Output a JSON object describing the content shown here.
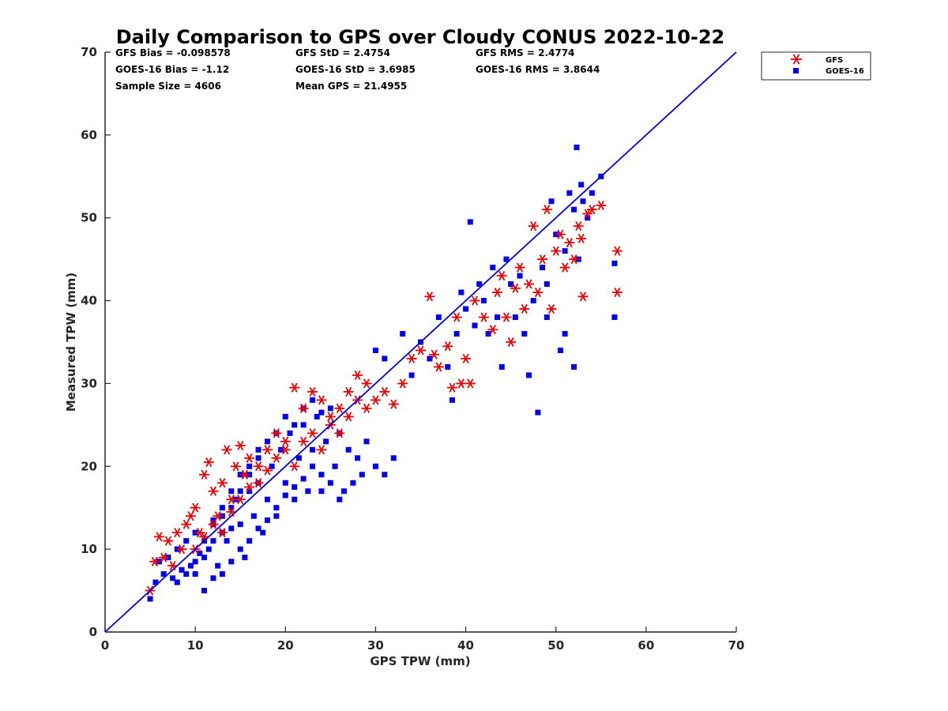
{
  "chart_data": {
    "type": "scatter",
    "title": "Daily Comparison to GPS over Cloudy CONUS 2022-10-22",
    "xlabel": "GPS TPW (mm)",
    "ylabel": "Measured TPW (mm)",
    "xlim": [
      0,
      70
    ],
    "ylim": [
      0,
      70
    ],
    "xticks": [
      "0",
      "10",
      "20",
      "30",
      "40",
      "50",
      "60",
      "70"
    ],
    "yticks": [
      "0",
      "10",
      "20",
      "30",
      "40",
      "50",
      "60",
      "70"
    ],
    "grid": false,
    "legend_position": "outside top-right",
    "stats": {
      "row1": [
        "GFS Bias = -0.098578",
        "GFS StD = 2.4754",
        "GFS RMS = 2.4774"
      ],
      "row2": [
        "GOES-16 Bias = -1.12",
        "GOES-16 StD = 3.6985",
        "GOES-16 RMS = 3.8644"
      ],
      "row3": [
        "Sample Size = 4606",
        "Mean GPS = 21.4955"
      ]
    },
    "reference_line": {
      "x": [
        0,
        70
      ],
      "y": [
        0,
        70
      ],
      "color": "#0000ee"
    },
    "series": [
      {
        "name": "GOES-16",
        "marker": "square",
        "color": "#0000ee",
        "points": [
          [
            5,
            4
          ],
          [
            5.6,
            6
          ],
          [
            6,
            8.5
          ],
          [
            6.5,
            7
          ],
          [
            7,
            9
          ],
          [
            7.5,
            6.5
          ],
          [
            8,
            10
          ],
          [
            8.5,
            7.5
          ],
          [
            9,
            11
          ],
          [
            9.5,
            8
          ],
          [
            10,
            12
          ],
          [
            10.5,
            9.5
          ],
          [
            11,
            5
          ],
          [
            11.5,
            10
          ],
          [
            12,
            13
          ],
          [
            12.5,
            8
          ],
          [
            13,
            14
          ],
          [
            13.5,
            11
          ],
          [
            14,
            12.5
          ],
          [
            14.5,
            16
          ],
          [
            15,
            13
          ],
          [
            15.5,
            9
          ],
          [
            16,
            17
          ],
          [
            16.5,
            14
          ],
          [
            17,
            18
          ],
          [
            17.5,
            12
          ],
          [
            18,
            16
          ],
          [
            18.5,
            20
          ],
          [
            19,
            15
          ],
          [
            19.5,
            22
          ],
          [
            20,
            18
          ],
          [
            20.5,
            24
          ],
          [
            21,
            16
          ],
          [
            21.5,
            21
          ],
          [
            22,
            25
          ],
          [
            22.5,
            17
          ],
          [
            23,
            22
          ],
          [
            23.5,
            26
          ],
          [
            24,
            19
          ],
          [
            24.5,
            23
          ],
          [
            25,
            27
          ],
          [
            25.5,
            20
          ],
          [
            26,
            24
          ],
          [
            26.5,
            17
          ],
          [
            27,
            22
          ],
          [
            27.5,
            18
          ],
          [
            28,
            21
          ],
          [
            28.5,
            19
          ],
          [
            29,
            23
          ],
          [
            30,
            20
          ],
          [
            31,
            19
          ],
          [
            32,
            21
          ],
          [
            30,
            34
          ],
          [
            31,
            33
          ],
          [
            33,
            36
          ],
          [
            34,
            31
          ],
          [
            35,
            35
          ],
          [
            36,
            33
          ],
          [
            37,
            38
          ],
          [
            38,
            32
          ],
          [
            38.5,
            28
          ],
          [
            39,
            36
          ],
          [
            39.5,
            41
          ],
          [
            40,
            39
          ],
          [
            40.5,
            49.5
          ],
          [
            41,
            37
          ],
          [
            41.5,
            42
          ],
          [
            42,
            40
          ],
          [
            42.5,
            36
          ],
          [
            43,
            44
          ],
          [
            43.5,
            38
          ],
          [
            44,
            32
          ],
          [
            44.5,
            45
          ],
          [
            45,
            42
          ],
          [
            45.5,
            38
          ],
          [
            46,
            43
          ],
          [
            46.5,
            36
          ],
          [
            47,
            31
          ],
          [
            47.5,
            40
          ],
          [
            48,
            26.5
          ],
          [
            48.5,
            44
          ],
          [
            49,
            38
          ],
          [
            49.5,
            52
          ],
          [
            50,
            48
          ],
          [
            50.5,
            34
          ],
          [
            51,
            46
          ],
          [
            51.5,
            53
          ],
          [
            52,
            51
          ],
          [
            52.3,
            58.5
          ],
          [
            52.5,
            45
          ],
          [
            52.8,
            54
          ],
          [
            53,
            52
          ],
          [
            53.5,
            50
          ],
          [
            54,
            53
          ],
          [
            55,
            55
          ],
          [
            56.5,
            44.5
          ],
          [
            56.5,
            38
          ],
          [
            52,
            32
          ],
          [
            51,
            36
          ],
          [
            49,
            42
          ],
          [
            12,
            6.5
          ],
          [
            13,
            7
          ],
          [
            14,
            8.5
          ],
          [
            15,
            10
          ],
          [
            16,
            11
          ],
          [
            17,
            12.5
          ],
          [
            18,
            13.5
          ],
          [
            19,
            14
          ],
          [
            20,
            16.5
          ],
          [
            21,
            17.5
          ],
          [
            22,
            18.5
          ],
          [
            23,
            20
          ],
          [
            24,
            17
          ],
          [
            25,
            18
          ],
          [
            26,
            16
          ],
          [
            10,
            7
          ],
          [
            11,
            9
          ],
          [
            12,
            11
          ],
          [
            13,
            12
          ],
          [
            14,
            15
          ],
          [
            15,
            17
          ],
          [
            16,
            19
          ],
          [
            17,
            21
          ],
          [
            18,
            23
          ],
          [
            19,
            24
          ],
          [
            20,
            26
          ],
          [
            21,
            25
          ],
          [
            22,
            27
          ],
          [
            23,
            28
          ],
          [
            24,
            26.5
          ],
          [
            8,
            6
          ],
          [
            9,
            7
          ],
          [
            10,
            8.5
          ],
          [
            11,
            11
          ],
          [
            12,
            13.5
          ],
          [
            13,
            15
          ],
          [
            14,
            17
          ],
          [
            15,
            19
          ],
          [
            16,
            20
          ],
          [
            17,
            22
          ]
        ]
      },
      {
        "name": "GFS",
        "marker": "asterisk",
        "color": "#ee0000",
        "points": [
          [
            5,
            5
          ],
          [
            5.5,
            8.5
          ],
          [
            6,
            11.5
          ],
          [
            6.5,
            9
          ],
          [
            7,
            11
          ],
          [
            7.5,
            8
          ],
          [
            8,
            12
          ],
          [
            8.5,
            10
          ],
          [
            9,
            13
          ],
          [
            9.5,
            14
          ],
          [
            10,
            15
          ],
          [
            10.5,
            12
          ],
          [
            11,
            19
          ],
          [
            11.5,
            20.5
          ],
          [
            12,
            17
          ],
          [
            12.5,
            14
          ],
          [
            13,
            18
          ],
          [
            13.5,
            22
          ],
          [
            14,
            16
          ],
          [
            14.5,
            20
          ],
          [
            15,
            22.5
          ],
          [
            15.5,
            19
          ],
          [
            16,
            21
          ],
          [
            17,
            20
          ],
          [
            18,
            22
          ],
          [
            19,
            24
          ],
          [
            20,
            23
          ],
          [
            21,
            29.5
          ],
          [
            22,
            27
          ],
          [
            23,
            29
          ],
          [
            24,
            28
          ],
          [
            25,
            26
          ],
          [
            26,
            24
          ],
          [
            27,
            29
          ],
          [
            28,
            31
          ],
          [
            29,
            27
          ],
          [
            30,
            28
          ],
          [
            31,
            29
          ],
          [
            32,
            27.5
          ],
          [
            33,
            30
          ],
          [
            34,
            33
          ],
          [
            35,
            34
          ],
          [
            36,
            40.5
          ],
          [
            36.5,
            33.5
          ],
          [
            37,
            32
          ],
          [
            38,
            34.5
          ],
          [
            38.5,
            29.5
          ],
          [
            39,
            38
          ],
          [
            39.5,
            30
          ],
          [
            40,
            33
          ],
          [
            40.5,
            30
          ],
          [
            41,
            40
          ],
          [
            42,
            38
          ],
          [
            43,
            36.5
          ],
          [
            43.5,
            41
          ],
          [
            44,
            43
          ],
          [
            44.5,
            38
          ],
          [
            45,
            35
          ],
          [
            45.5,
            41.5
          ],
          [
            46,
            44
          ],
          [
            46.5,
            39
          ],
          [
            47,
            42
          ],
          [
            47.5,
            49
          ],
          [
            48,
            41
          ],
          [
            48.5,
            45
          ],
          [
            49,
            51
          ],
          [
            49.5,
            39
          ],
          [
            50,
            46
          ],
          [
            50.5,
            48
          ],
          [
            51,
            44
          ],
          [
            51.5,
            47
          ],
          [
            52,
            45
          ],
          [
            52.5,
            49
          ],
          [
            53,
            40.5
          ],
          [
            53.5,
            50.5
          ],
          [
            54,
            51
          ],
          [
            55,
            51.5
          ],
          [
            56.8,
            46
          ],
          [
            56.8,
            41
          ],
          [
            52.8,
            47.5
          ],
          [
            10,
            10
          ],
          [
            11,
            11.5
          ],
          [
            12,
            13
          ],
          [
            13,
            12
          ],
          [
            14,
            14.5
          ],
          [
            15,
            16
          ],
          [
            16,
            17.5
          ],
          [
            17,
            18
          ],
          [
            18,
            19.5
          ],
          [
            19,
            21
          ],
          [
            20,
            22
          ],
          [
            21,
            20
          ],
          [
            22,
            23
          ],
          [
            23,
            24
          ],
          [
            24,
            22
          ],
          [
            25,
            25
          ],
          [
            26,
            27
          ],
          [
            27,
            26
          ],
          [
            28,
            28
          ],
          [
            29,
            30
          ]
        ]
      }
    ]
  }
}
